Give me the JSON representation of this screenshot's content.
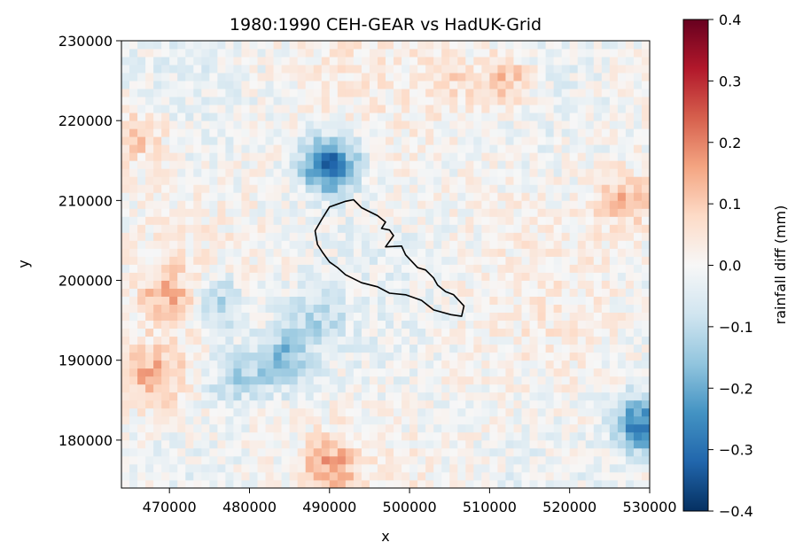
{
  "chart_data": {
    "type": "heatmap",
    "title": "1980:1990 CEH-GEAR vs HadUK-Grid",
    "xlabel": "x",
    "ylabel": "y",
    "xlim": [
      464000,
      530000
    ],
    "ylim": [
      174000,
      230000
    ],
    "x_ticks": [
      470000,
      480000,
      490000,
      500000,
      510000,
      520000,
      530000
    ],
    "y_ticks": [
      180000,
      190000,
      200000,
      210000,
      220000,
      230000
    ],
    "grid_resolution": 1000,
    "colormap": "RdBu_r",
    "colorbar": {
      "label": "rainfall diff (mm)",
      "range": [
        -0.4,
        0.4
      ],
      "ticks": [
        "−0.4",
        "−0.3",
        "−0.2",
        "−0.1",
        "0.0",
        "0.1",
        "0.2",
        "0.3",
        "0.4"
      ],
      "colors": [
        "#053061",
        "#2166ac",
        "#4393c3",
        "#92c5de",
        "#d1e5f0",
        "#f7f7f7",
        "#fddbc7",
        "#f4a582",
        "#d6604d",
        "#b2182b",
        "#67001f"
      ]
    },
    "regional_anomalies": [
      {
        "x": 490000,
        "y": 214500,
        "value": -0.32
      },
      {
        "x": 484000,
        "y": 190000,
        "value": -0.18
      },
      {
        "x": 478000,
        "y": 188000,
        "value": -0.12
      },
      {
        "x": 529000,
        "y": 182000,
        "value": -0.28
      },
      {
        "x": 476000,
        "y": 197000,
        "value": -0.15
      },
      {
        "x": 488000,
        "y": 195000,
        "value": -0.1
      },
      {
        "x": 468000,
        "y": 188000,
        "value": 0.14
      },
      {
        "x": 470000,
        "y": 198000,
        "value": 0.12
      },
      {
        "x": 490000,
        "y": 177000,
        "value": 0.14
      },
      {
        "x": 512000,
        "y": 225000,
        "value": 0.13
      },
      {
        "x": 527000,
        "y": 210000,
        "value": 0.12
      },
      {
        "x": 466000,
        "y": 218000,
        "value": 0.1
      },
      {
        "x": 505000,
        "y": 225000,
        "value": 0.06
      }
    ],
    "catchment_outline": [
      [
        490000,
        209200
      ],
      [
        492000,
        209900
      ],
      [
        493000,
        210100
      ],
      [
        494000,
        209100
      ],
      [
        496000,
        208100
      ],
      [
        497000,
        207300
      ],
      [
        496500,
        206500
      ],
      [
        497500,
        206300
      ],
      [
        498000,
        205600
      ],
      [
        497000,
        204200
      ],
      [
        499000,
        204300
      ],
      [
        499500,
        203200
      ],
      [
        501000,
        201600
      ],
      [
        502000,
        201300
      ],
      [
        503000,
        200300
      ],
      [
        503500,
        199400
      ],
      [
        504500,
        198600
      ],
      [
        505500,
        198200
      ],
      [
        506800,
        196800
      ],
      [
        506500,
        195500
      ],
      [
        505200,
        195700
      ],
      [
        503000,
        196300
      ],
      [
        501500,
        197500
      ],
      [
        499500,
        198200
      ],
      [
        497500,
        198400
      ],
      [
        496000,
        199200
      ],
      [
        494000,
        199700
      ],
      [
        492000,
        200700
      ],
      [
        491000,
        201600
      ],
      [
        490000,
        202300
      ],
      [
        489200,
        203400
      ],
      [
        488500,
        204500
      ],
      [
        488200,
        206200
      ],
      [
        489000,
        207600
      ],
      [
        490000,
        209200
      ]
    ]
  }
}
